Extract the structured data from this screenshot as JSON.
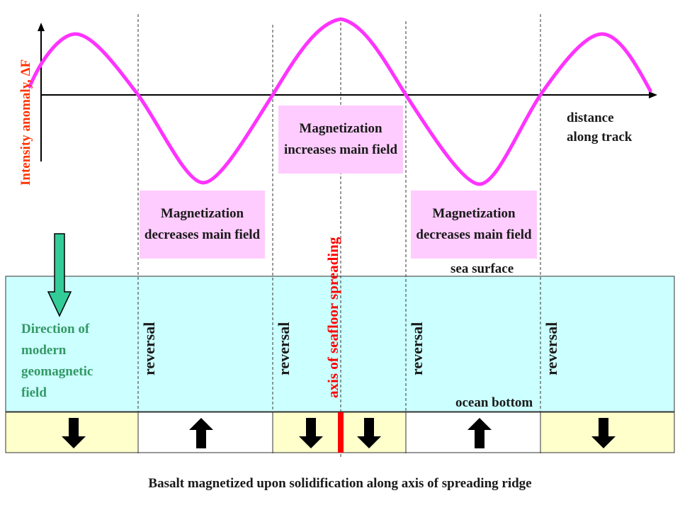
{
  "labels": {
    "y_axis": "Intensity anomaly, ΔF",
    "x_axis_line1": "distance",
    "x_axis_line2": "along track",
    "box_increase": "Magnetization increases main field",
    "box_decrease_left": "Magnetization decreases main field",
    "box_decrease_right": "Magnetization decreases main field",
    "spreading_axis": "axis of seafloor spreading",
    "sea_surface": "sea surface",
    "ocean_bottom": "ocean bottom",
    "geomagnetic_field": "Direction of modern geomagnetic field",
    "reversal": "reversal",
    "caption": "Basalt magnetized upon solidification along axis of spreading ridge"
  },
  "basalt_blocks": [
    {
      "direction": "down",
      "color": "#ffffcc"
    },
    {
      "direction": "up",
      "color": "#ffffff"
    },
    {
      "direction": "down",
      "color": "#ffffcc"
    },
    {
      "direction": "up",
      "color": "#ffffff"
    },
    {
      "direction": "down",
      "color": "#ffffcc"
    }
  ],
  "colors": {
    "curve": "#ff33ff",
    "ocean": "#ccffff",
    "axis_red": "#ff0000",
    "geomagnetic_green": "#33cc99",
    "y_label_red": "#ff3300"
  }
}
